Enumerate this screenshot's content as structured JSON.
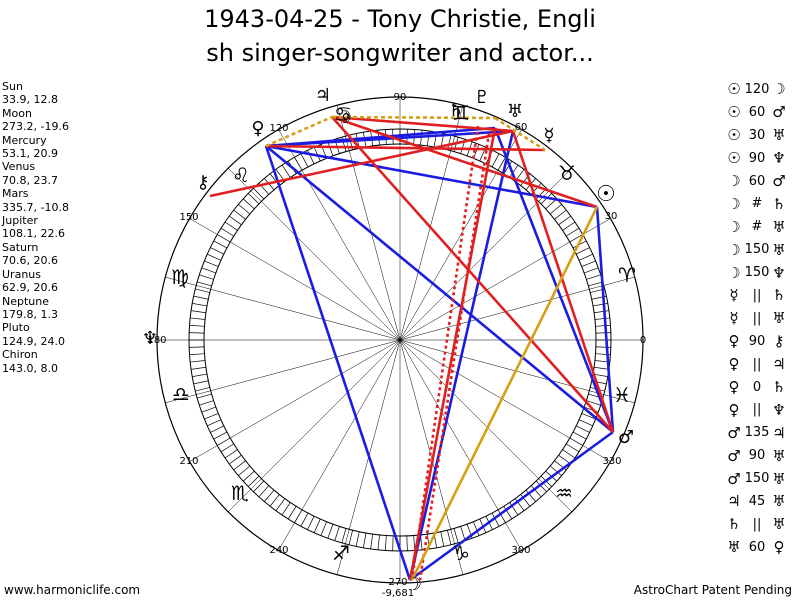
{
  "chart": {
    "title_line1": "1943-04-25 - Tony Christie, Engli",
    "title_line2": "sh singer-songwriter and actor...",
    "degree_labels": {
      "d0": "0",
      "d30": "30",
      "d60": "60",
      "d90": "90",
      "d120": "120",
      "d150": "150",
      "d180": "180",
      "d210": "210",
      "d240": "240",
      "d270": "270",
      "d300": "300",
      "d330": "330"
    },
    "bottom_value": "-9,681"
  },
  "planet_positions": [
    {
      "name": "Sun",
      "value": "33.9, 12.8"
    },
    {
      "name": "Moon",
      "value": "273.2, -19.6"
    },
    {
      "name": "Mercury",
      "value": "53.1, 20.9"
    },
    {
      "name": "Venus",
      "value": "70.8, 23.7"
    },
    {
      "name": "Mars",
      "value": "335.7, -10.8"
    },
    {
      "name": "Jupiter",
      "value": "108.1, 22.6"
    },
    {
      "name": "Saturn",
      "value": "70.6, 20.6"
    },
    {
      "name": "Uranus",
      "value": "62.9, 20.6"
    },
    {
      "name": "Neptune",
      "value": "179.8, 1.3"
    },
    {
      "name": "Pluto",
      "value": "124.9, 24.0"
    },
    {
      "name": "Chiron",
      "value": "143.0, 8.0"
    }
  ],
  "aspects": [
    {
      "p1": "☉",
      "angle": "120",
      "p2": "☽"
    },
    {
      "p1": "☉",
      "angle": "60",
      "p2": "♂"
    },
    {
      "p1": "☉",
      "angle": "30",
      "p2": "♅"
    },
    {
      "p1": "☉",
      "angle": "90",
      "p2": "♆"
    },
    {
      "p1": "☽",
      "angle": "60",
      "p2": "♂"
    },
    {
      "p1": "☽",
      "angle": "#",
      "p2": "♄"
    },
    {
      "p1": "☽",
      "angle": "#",
      "p2": "♅"
    },
    {
      "p1": "☽",
      "angle": "150",
      "p2": "♅"
    },
    {
      "p1": "☽",
      "angle": "150",
      "p2": "♆"
    },
    {
      "p1": "☿",
      "angle": "||",
      "p2": "♄"
    },
    {
      "p1": "☿",
      "angle": "||",
      "p2": "♅"
    },
    {
      "p1": "♀",
      "angle": "90",
      "p2": "⚷"
    },
    {
      "p1": "♀",
      "angle": "||",
      "p2": "♃"
    },
    {
      "p1": "♀",
      "angle": "0",
      "p2": "♄"
    },
    {
      "p1": "♀",
      "angle": "||",
      "p2": "♆"
    },
    {
      "p1": "♂",
      "angle": "135",
      "p2": "♃"
    },
    {
      "p1": "♂",
      "angle": "90",
      "p2": "♅"
    },
    {
      "p1": "♂",
      "angle": "150",
      "p2": "♅"
    },
    {
      "p1": "♃",
      "angle": "45",
      "p2": "♅"
    },
    {
      "p1": "♄",
      "angle": "||",
      "p2": "♅"
    },
    {
      "p1": "♅",
      "angle": "60",
      "p2": "♀"
    }
  ],
  "wheel_glyphs": {
    "sun": "☉",
    "moon_top": "☽",
    "moon_bottom": "☽",
    "mercury": "☿",
    "venus": "♀",
    "mars": "♂",
    "jupiter": "♃",
    "saturn": "♄",
    "uranus": "♅",
    "neptune": "♆",
    "pluto": "♇",
    "chiron": "⚷",
    "aries": "♈",
    "taurus": "♉",
    "gemini": "♊",
    "cancer": "♋",
    "leo": "♌",
    "virgo": "♍",
    "libra": "♎",
    "scorpio": "♏",
    "sagittarius": "♐",
    "capricorn": "♑",
    "aquarius": "♒",
    "pisces": "♓"
  },
  "colors": {
    "red": "#e02020",
    "blue": "#1c1ce0",
    "gold": "#d4a017"
  },
  "footer": {
    "left": "www.harmoniclife.com",
    "right": "AstroChart Patent Pending"
  }
}
